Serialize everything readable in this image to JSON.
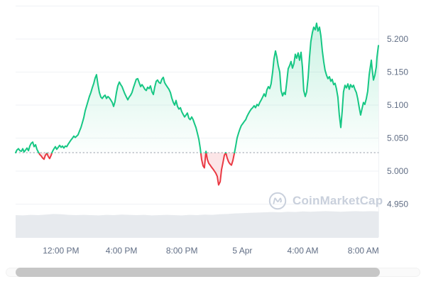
{
  "watermark": {
    "text": "CoinMarketCap"
  },
  "colors": {
    "up": "#16c784",
    "down": "#ea3943",
    "up_fill_top": "rgba(22,199,132,0.25)",
    "up_fill_bottom": "rgba(22,199,132,0.01)",
    "down_fill": "rgba(234,57,67,0.13)",
    "grid": "#eff2f5",
    "axis_label": "#616e85",
    "baseline": "#939aa6",
    "volume_fill": "#e7eaee",
    "watermark": "#c9d0dc",
    "scrollbar_thumb": "#c6c6c6"
  },
  "chart_data": {
    "type": "area",
    "title": "",
    "xlabel": "",
    "ylabel": "",
    "x_unit": "hours since 09:00 AM, 4 Apr",
    "ylim": [
      4.9,
      5.25
    ],
    "xlim": [
      0,
      24
    ],
    "grid": "horizontal-only",
    "baseline": 5.028,
    "y_ticks": [
      {
        "value": 5.2,
        "label": "5.200"
      },
      {
        "value": 5.15,
        "label": "5.150"
      },
      {
        "value": 5.1,
        "label": "5.100"
      },
      {
        "value": 5.05,
        "label": "5.050"
      },
      {
        "value": 5.0,
        "label": "5.000"
      },
      {
        "value": 4.95,
        "label": "4.950"
      }
    ],
    "x_ticks": [
      {
        "t": 3,
        "label": "12:00 PM"
      },
      {
        "t": 7,
        "label": "4:00 PM"
      },
      {
        "t": 11,
        "label": "8:00 PM"
      },
      {
        "t": 15,
        "label": "5 Apr"
      },
      {
        "t": 19,
        "label": "4:00 AM"
      },
      {
        "t": 23,
        "label": "8:00 AM"
      }
    ],
    "series": [
      {
        "name": "price",
        "points": [
          [
            0,
            5.028
          ],
          [
            0.09,
            5.032
          ],
          [
            0.19,
            5.034
          ],
          [
            0.28,
            5.031
          ],
          [
            0.38,
            5.03
          ],
          [
            0.47,
            5.034
          ],
          [
            0.56,
            5.029
          ],
          [
            0.66,
            5.032
          ],
          [
            0.75,
            5.035
          ],
          [
            0.85,
            5.031
          ],
          [
            0.94,
            5.038
          ],
          [
            1.03,
            5.042
          ],
          [
            1.13,
            5.044
          ],
          [
            1.22,
            5.037
          ],
          [
            1.32,
            5.04
          ],
          [
            1.41,
            5.033
          ],
          [
            1.5,
            5.029
          ],
          [
            1.6,
            5.025
          ],
          [
            1.69,
            5.023
          ],
          [
            1.78,
            5.02
          ],
          [
            1.88,
            5.018
          ],
          [
            1.97,
            5.024
          ],
          [
            2.07,
            5.027
          ],
          [
            2.16,
            5.022
          ],
          [
            2.25,
            5.019
          ],
          [
            2.35,
            5.024
          ],
          [
            2.44,
            5.03
          ],
          [
            2.54,
            5.034
          ],
          [
            2.63,
            5.037
          ],
          [
            2.72,
            5.033
          ],
          [
            2.82,
            5.036
          ],
          [
            2.91,
            5.039
          ],
          [
            3.01,
            5.036
          ],
          [
            3.1,
            5.038
          ],
          [
            3.19,
            5.035
          ],
          [
            3.29,
            5.038
          ],
          [
            3.38,
            5.037
          ],
          [
            3.48,
            5.041
          ],
          [
            3.57,
            5.044
          ],
          [
            3.66,
            5.047
          ],
          [
            3.76,
            5.05
          ],
          [
            3.85,
            5.053
          ],
          [
            3.94,
            5.051
          ],
          [
            4.04,
            5.053
          ],
          [
            4.13,
            5.055
          ],
          [
            4.23,
            5.061
          ],
          [
            4.32,
            5.066
          ],
          [
            4.41,
            5.073
          ],
          [
            4.51,
            5.081
          ],
          [
            4.6,
            5.091
          ],
          [
            4.7,
            5.099
          ],
          [
            4.79,
            5.106
          ],
          [
            4.88,
            5.113
          ],
          [
            4.98,
            5.119
          ],
          [
            5.07,
            5.126
          ],
          [
            5.17,
            5.133
          ],
          [
            5.26,
            5.141
          ],
          [
            5.35,
            5.146
          ],
          [
            5.45,
            5.131
          ],
          [
            5.54,
            5.119
          ],
          [
            5.64,
            5.112
          ],
          [
            5.73,
            5.11
          ],
          [
            5.82,
            5.113
          ],
          [
            5.92,
            5.115
          ],
          [
            6.01,
            5.11
          ],
          [
            6.11,
            5.113
          ],
          [
            6.2,
            5.111
          ],
          [
            6.29,
            5.108
          ],
          [
            6.39,
            5.104
          ],
          [
            6.48,
            5.098
          ],
          [
            6.57,
            5.105
          ],
          [
            6.67,
            5.119
          ],
          [
            6.76,
            5.129
          ],
          [
            6.86,
            5.135
          ],
          [
            6.95,
            5.131
          ],
          [
            7.04,
            5.128
          ],
          [
            7.14,
            5.122
          ],
          [
            7.23,
            5.117
          ],
          [
            7.33,
            5.112
          ],
          [
            7.42,
            5.108
          ],
          [
            7.51,
            5.112
          ],
          [
            7.61,
            5.115
          ],
          [
            7.7,
            5.119
          ],
          [
            7.8,
            5.127
          ],
          [
            7.89,
            5.133
          ],
          [
            7.98,
            5.139
          ],
          [
            8.08,
            5.14
          ],
          [
            8.17,
            5.134
          ],
          [
            8.27,
            5.128
          ],
          [
            8.36,
            5.131
          ],
          [
            8.45,
            5.128
          ],
          [
            8.55,
            5.124
          ],
          [
            8.64,
            5.122
          ],
          [
            8.73,
            5.127
          ],
          [
            8.83,
            5.125
          ],
          [
            8.92,
            5.129
          ],
          [
            9.02,
            5.12
          ],
          [
            9.11,
            5.116
          ],
          [
            9.2,
            5.127
          ],
          [
            9.3,
            5.136
          ],
          [
            9.39,
            5.138
          ],
          [
            9.49,
            5.134
          ],
          [
            9.58,
            5.133
          ],
          [
            9.67,
            5.139
          ],
          [
            9.77,
            5.142
          ],
          [
            9.86,
            5.134
          ],
          [
            9.96,
            5.13
          ],
          [
            10.05,
            5.127
          ],
          [
            10.14,
            5.124
          ],
          [
            10.24,
            5.119
          ],
          [
            10.33,
            5.111
          ],
          [
            10.43,
            5.104
          ],
          [
            10.52,
            5.1
          ],
          [
            10.61,
            5.107
          ],
          [
            10.71,
            5.098
          ],
          [
            10.8,
            5.094
          ],
          [
            10.9,
            5.096
          ],
          [
            10.99,
            5.09
          ],
          [
            11.08,
            5.086
          ],
          [
            11.18,
            5.082
          ],
          [
            11.27,
            5.085
          ],
          [
            11.36,
            5.088
          ],
          [
            11.46,
            5.08
          ],
          [
            11.55,
            5.078
          ],
          [
            11.65,
            5.082
          ],
          [
            11.74,
            5.078
          ],
          [
            11.83,
            5.072
          ],
          [
            11.93,
            5.066
          ],
          [
            12.02,
            5.058
          ],
          [
            12.12,
            5.048
          ],
          [
            12.21,
            5.035
          ],
          [
            12.3,
            5.018
          ],
          [
            12.4,
            5.008
          ],
          [
            12.49,
            5.005
          ],
          [
            12.59,
            5.03
          ],
          [
            12.68,
            5.018
          ],
          [
            12.77,
            5.012
          ],
          [
            12.87,
            5.009
          ],
          [
            12.96,
            5.006
          ],
          [
            13.06,
            5.003
          ],
          [
            13.15,
            5.0
          ],
          [
            13.24,
            4.997
          ],
          [
            13.34,
            4.992
          ],
          [
            13.43,
            4.979
          ],
          [
            13.53,
            4.984
          ],
          [
            13.62,
            5.002
          ],
          [
            13.71,
            5.012
          ],
          [
            13.81,
            5.024
          ],
          [
            13.9,
            5.028
          ],
          [
            13.99,
            5.02
          ],
          [
            14.09,
            5.014
          ],
          [
            14.18,
            5.011
          ],
          [
            14.28,
            5.009
          ],
          [
            14.37,
            5.016
          ],
          [
            14.46,
            5.026
          ],
          [
            14.56,
            5.038
          ],
          [
            14.65,
            5.05
          ],
          [
            14.75,
            5.058
          ],
          [
            14.84,
            5.064
          ],
          [
            14.93,
            5.069
          ],
          [
            15.03,
            5.072
          ],
          [
            15.12,
            5.075
          ],
          [
            15.22,
            5.078
          ],
          [
            15.31,
            5.083
          ],
          [
            15.4,
            5.087
          ],
          [
            15.5,
            5.091
          ],
          [
            15.59,
            5.094
          ],
          [
            15.68,
            5.096
          ],
          [
            15.78,
            5.099
          ],
          [
            15.87,
            5.096
          ],
          [
            15.97,
            5.101
          ],
          [
            16.06,
            5.099
          ],
          [
            16.15,
            5.104
          ],
          [
            16.25,
            5.108
          ],
          [
            16.34,
            5.112
          ],
          [
            16.44,
            5.117
          ],
          [
            16.53,
            5.113
          ],
          [
            16.62,
            5.123
          ],
          [
            16.72,
            5.128
          ],
          [
            16.81,
            5.125
          ],
          [
            16.9,
            5.132
          ],
          [
            17.0,
            5.15
          ],
          [
            17.09,
            5.17
          ],
          [
            17.19,
            5.182
          ],
          [
            17.28,
            5.173
          ],
          [
            17.37,
            5.16
          ],
          [
            17.47,
            5.15
          ],
          [
            17.56,
            5.122
          ],
          [
            17.66,
            5.114
          ],
          [
            17.75,
            5.119
          ],
          [
            17.84,
            5.116
          ],
          [
            17.94,
            5.136
          ],
          [
            18.03,
            5.155
          ],
          [
            18.13,
            5.16
          ],
          [
            18.22,
            5.166
          ],
          [
            18.31,
            5.156
          ],
          [
            18.41,
            5.163
          ],
          [
            18.5,
            5.177
          ],
          [
            18.59,
            5.171
          ],
          [
            18.69,
            5.179
          ],
          [
            18.78,
            5.168
          ],
          [
            18.88,
            5.18
          ],
          [
            18.97,
            5.158
          ],
          [
            19.06,
            5.122
          ],
          [
            19.16,
            5.113
          ],
          [
            19.25,
            5.12
          ],
          [
            19.35,
            5.142
          ],
          [
            19.44,
            5.172
          ],
          [
            19.53,
            5.196
          ],
          [
            19.63,
            5.21
          ],
          [
            19.72,
            5.218
          ],
          [
            19.82,
            5.214
          ],
          [
            19.91,
            5.224
          ],
          [
            20.0,
            5.212
          ],
          [
            20.1,
            5.218
          ],
          [
            20.19,
            5.205
          ],
          [
            20.29,
            5.182
          ],
          [
            20.38,
            5.166
          ],
          [
            20.47,
            5.153
          ],
          [
            20.57,
            5.145
          ],
          [
            20.66,
            5.14
          ],
          [
            20.76,
            5.143
          ],
          [
            20.85,
            5.136
          ],
          [
            20.94,
            5.139
          ],
          [
            21.04,
            5.131
          ],
          [
            21.13,
            5.133
          ],
          [
            21.22,
            5.125
          ],
          [
            21.32,
            5.112
          ],
          [
            21.41,
            5.085
          ],
          [
            21.51,
            5.066
          ],
          [
            21.6,
            5.09
          ],
          [
            21.69,
            5.12
          ],
          [
            21.79,
            5.13
          ],
          [
            21.88,
            5.126
          ],
          [
            21.98,
            5.132
          ],
          [
            22.07,
            5.124
          ],
          [
            22.16,
            5.131
          ],
          [
            22.26,
            5.127
          ],
          [
            22.35,
            5.13
          ],
          [
            22.44,
            5.124
          ],
          [
            22.54,
            5.119
          ],
          [
            22.63,
            5.11
          ],
          [
            22.73,
            5.096
          ],
          [
            22.82,
            5.085
          ],
          [
            22.92,
            5.095
          ],
          [
            23.01,
            5.104
          ],
          [
            23.1,
            5.101
          ],
          [
            23.2,
            5.11
          ],
          [
            23.29,
            5.121
          ],
          [
            23.39,
            5.146
          ],
          [
            23.48,
            5.16
          ],
          [
            23.53,
            5.168
          ],
          [
            23.58,
            5.155
          ],
          [
            23.67,
            5.138
          ],
          [
            23.76,
            5.145
          ],
          [
            23.86,
            5.158
          ],
          [
            23.9,
            5.172
          ],
          [
            24.0,
            5.19
          ]
        ]
      }
    ],
    "volume_relative": [
      0.8,
      0.79,
      0.81,
      0.8,
      0.82,
      0.84,
      0.83,
      0.81,
      0.8,
      0.81,
      0.8,
      0.79,
      0.81,
      0.8,
      0.82,
      0.81,
      0.8,
      0.81,
      0.79,
      0.8,
      0.81,
      0.8,
      0.79,
      0.81,
      0.8,
      0.82,
      0.81,
      0.83,
      0.84,
      0.86,
      0.87,
      0.88,
      0.89,
      0.9,
      0.91,
      0.9,
      0.92,
      0.91,
      0.93,
      0.92,
      0.93,
      0.94,
      0.93,
      0.92,
      0.93,
      0.94,
      0.93,
      0.94,
      0.93
    ]
  }
}
